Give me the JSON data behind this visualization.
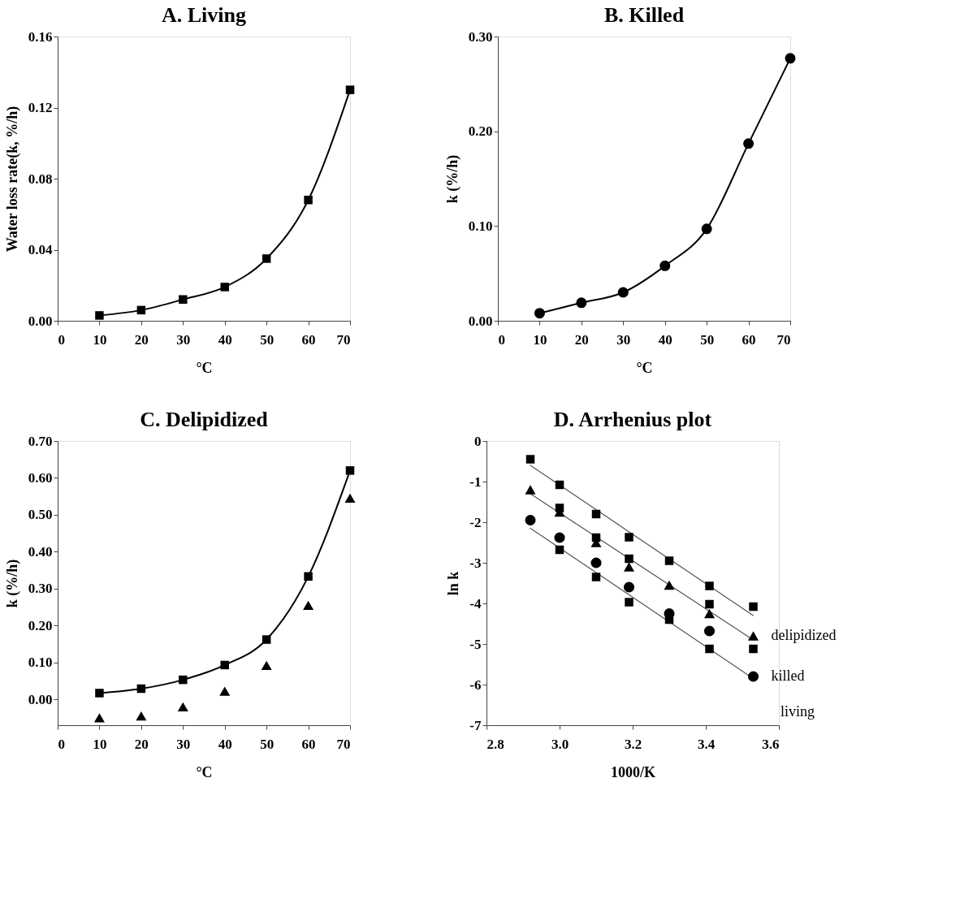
{
  "chart_data": [
    {
      "type": "line",
      "title": "A. Living",
      "xlabel": "°C",
      "ylabel": "Water loss rate(k, %/h)",
      "x": [
        10,
        20,
        30,
        40,
        50,
        60,
        70
      ],
      "xlim": [
        0,
        70
      ],
      "xticks": [
        0,
        10,
        20,
        30,
        40,
        50,
        60,
        70
      ],
      "ylim": [
        0,
        0.16
      ],
      "yticks": [
        {
          "value": 0,
          "label": "0.00"
        },
        {
          "value": 0.04,
          "label": "0.04"
        },
        {
          "value": 0.08,
          "label": "0.08"
        },
        {
          "value": 0.12,
          "label": "0.12"
        },
        {
          "value": 0.16,
          "label": "0.16"
        }
      ],
      "grid": false,
      "series": [
        {
          "color": "#000000",
          "marker": "square",
          "line_style": "solid",
          "values": [
            0.003,
            0.006,
            0.012,
            0.019,
            0.035,
            0.068,
            0.13
          ]
        }
      ]
    },
    {
      "type": "line",
      "title": "B. Killed",
      "xlabel": "°C",
      "ylabel": "k (%/h)",
      "x": [
        10,
        20,
        30,
        40,
        50,
        60,
        70
      ],
      "xlim": [
        0,
        70
      ],
      "xticks": [
        0,
        10,
        20,
        30,
        40,
        50,
        60,
        70
      ],
      "ylim": [
        0,
        0.3
      ],
      "yticks": [
        {
          "value": 0,
          "label": "0.00"
        },
        {
          "value": 0.1,
          "label": "0.10"
        },
        {
          "value": 0.2,
          "label": "0.20"
        },
        {
          "value": 0.3,
          "label": "0.30"
        }
      ],
      "grid": false,
      "series": [
        {
          "color": "#000000",
          "marker": "circle",
          "line_style": "solid",
          "values": [
            0.008,
            0.019,
            0.03,
            0.058,
            0.097,
            0.187,
            0.277
          ]
        }
      ]
    },
    {
      "type": "line",
      "title": "C. Delipidized",
      "xlabel": "°C",
      "ylabel": "k (%/h)",
      "x": [
        10,
        20,
        30,
        40,
        50,
        60,
        70
      ],
      "xlim": [
        0,
        70
      ],
      "xticks": [
        0,
        10,
        20,
        30,
        40,
        50,
        60,
        70
      ],
      "ylim": [
        -0.07,
        0.7
      ],
      "yticks": [
        {
          "value": 0,
          "label": "0.00"
        },
        {
          "value": 0.1,
          "label": "0.10"
        },
        {
          "value": 0.2,
          "label": "0.20"
        },
        {
          "value": 0.3,
          "label": "0.30"
        },
        {
          "value": 0.4,
          "label": "0.40"
        },
        {
          "value": 0.5,
          "label": "0.50"
        },
        {
          "value": 0.6,
          "label": "0.60"
        },
        {
          "value": 0.7,
          "label": "0.70"
        }
      ],
      "grid": false,
      "series": [
        {
          "color": "#000000",
          "marker": "square",
          "line_style": "solid",
          "values": [
            0.017,
            0.029,
            0.053,
            0.093,
            0.162,
            0.333,
            0.62
          ]
        },
        {
          "type": "scatter",
          "color": "#000000",
          "marker": "triangle",
          "values": [
            -0.05,
            -0.045,
            -0.02,
            0.022,
            0.092,
            0.255,
            0.545
          ]
        }
      ]
    },
    {
      "type": "scatter",
      "title": "D. Arrhenius plot",
      "xlabel": "1000/K",
      "ylabel": "ln k",
      "x": [
        2.92,
        3.0,
        3.1,
        3.19,
        3.3,
        3.41,
        3.53
      ],
      "xlim": [
        2.8,
        3.6
      ],
      "xticks": [
        2.8,
        {
          "value": 3.0,
          "label": "3.0"
        },
        3.2,
        3.4,
        3.6
      ],
      "ylim": [
        -7,
        0
      ],
      "yticks": [
        -7,
        -6,
        -5,
        -4,
        -3,
        -2,
        -1,
        0
      ],
      "grid": false,
      "series": [
        {
          "type": "line",
          "color": "#555555",
          "marker": "none",
          "line_style": "solid",
          "x": [
            2.92,
            3.53
          ],
          "values": [
            -0.6,
            -4.3
          ]
        },
        {
          "type": "line",
          "color": "#555555",
          "marker": "none",
          "line_style": "solid",
          "x": [
            2.92,
            3.53
          ],
          "values": [
            -1.3,
            -4.9
          ]
        },
        {
          "type": "line",
          "color": "#555555",
          "marker": "none",
          "line_style": "solid",
          "x": [
            2.92,
            3.53
          ],
          "values": [
            -2.15,
            -5.85
          ]
        },
        {
          "color": "#000000",
          "marker": "square",
          "values": [
            -0.45,
            -1.08,
            -1.8,
            -2.37,
            -2.95,
            -3.57,
            -4.08
          ]
        },
        {
          "color": "#000000",
          "marker": "square",
          "x": [
            3.0,
            3.1,
            3.19,
            3.41
          ],
          "values": [
            -1.65,
            -2.38,
            -2.9,
            -4.02
          ]
        },
        {
          "color": "#000000",
          "marker": "square",
          "x": [
            3.0,
            3.1,
            3.19,
            3.3,
            3.41,
            3.53
          ],
          "values": [
            -2.68,
            -3.35,
            -3.97,
            -4.4,
            -5.12,
            -5.12
          ]
        },
        {
          "color": "#000000",
          "marker": "triangle",
          "values": [
            -1.2,
            -1.75,
            -2.5,
            -3.1,
            -3.55,
            -4.25,
            -4.8
          ]
        },
        {
          "color": "#000000",
          "marker": "circle",
          "values": [
            -1.95,
            -2.38,
            -3.0,
            -3.6,
            -4.25,
            -4.68,
            -5.8
          ]
        }
      ],
      "annotations": [
        {
          "text": "delipidized",
          "x": 3.53,
          "y": -4.8
        },
        {
          "text": "killed",
          "x": 3.53,
          "y": -5.8
        },
        "living"
      ]
    }
  ]
}
